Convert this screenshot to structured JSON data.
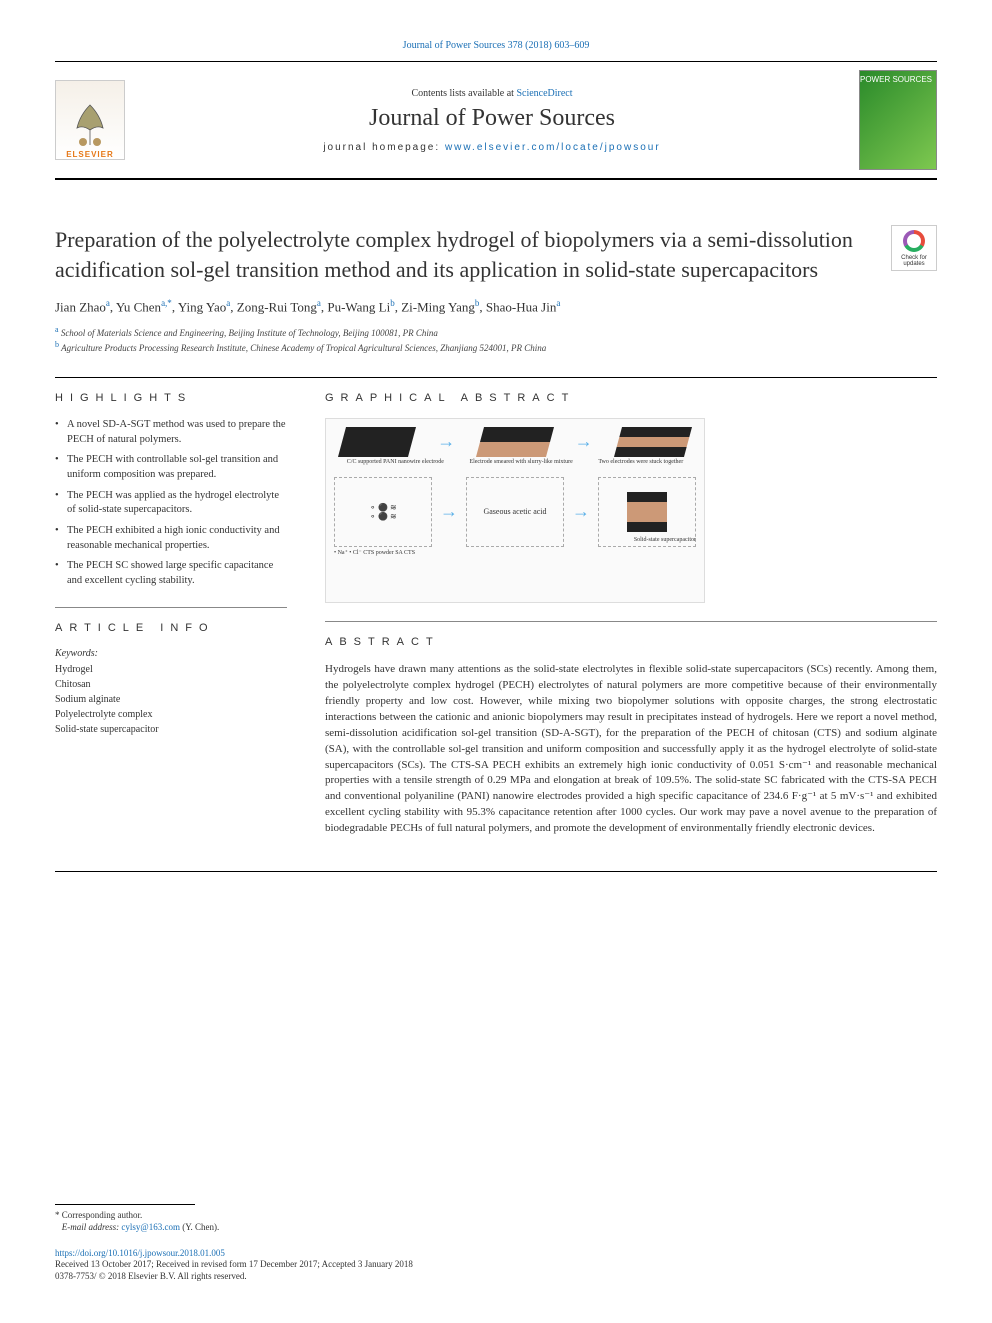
{
  "header": {
    "citation": "Journal of Power Sources 378 (2018) 603–609",
    "contents_prefix": "Contents lists available at ",
    "sciencedirect": "ScienceDirect",
    "journal_name": "Journal of Power Sources",
    "homepage_prefix": "journal homepage: ",
    "homepage_url": "www.elsevier.com/locate/jpowsour",
    "elsevier_label": "ELSEVIER",
    "cover_label": "POWER\nSOURCES"
  },
  "article": {
    "title": "Preparation of the polyelectrolyte complex hydrogel of biopolymers via a semi-dissolution acidification sol-gel transition method and its application in solid-state supercapacitors",
    "check_updates_label": "Check for updates"
  },
  "authors": {
    "list_html": "Jian Zhao<a class='aff'>a</a>, Yu Chen<a class='aff'>a,*</a>, Ying Yao<a class='aff'>a</a>, Zong-Rui Tong<a class='aff'>a</a>, Pu-Wang Li<a class='aff'>b</a>, Zi-Ming Yang<a class='aff'>b</a>, Shao-Hua Jin<a class='aff'>a</a>",
    "affiliations": [
      {
        "label": "a",
        "text": "School of Materials Science and Engineering, Beijing Institute of Technology, Beijing 100081, PR China"
      },
      {
        "label": "b",
        "text": "Agriculture Products Processing Research Institute, Chinese Academy of Tropical Agricultural Sciences, Zhanjiang 524001, PR China"
      }
    ]
  },
  "highlights": {
    "heading": "HIGHLIGHTS",
    "items": [
      "A novel SD-A-SGT method was used to prepare the PECH of natural polymers.",
      "The PECH with controllable sol-gel transition and uniform composition was prepared.",
      "The PECH was applied as the hydrogel electrolyte of solid-state supercapacitors.",
      "The PECH exhibited a high ionic conductivity and reasonable mechanical properties.",
      "The PECH SC showed large specific capacitance and excellent cycling stability."
    ]
  },
  "graphical_abstract": {
    "heading": "GRAPHICAL ABSTRACT",
    "labels": {
      "l1": "C/C supported PANI nanowire electrode",
      "l2": "Electrode smeared with slurry-like mixture",
      "l3": "Two electrodes were stuck together",
      "gas": "Gaseous acetic acid",
      "sc": "Solid-state supercapacitor",
      "legend": "• Na⁺   • Cl⁻   CTS powder   SA   CTS"
    }
  },
  "article_info": {
    "heading": "ARTICLE INFO",
    "kw_label": "Keywords:",
    "keywords": [
      "Hydrogel",
      "Chitosan",
      "Sodium alginate",
      "Polyelectrolyte complex",
      "Solid-state supercapacitor"
    ]
  },
  "abstract": {
    "heading": "ABSTRACT",
    "text": "Hydrogels have drawn many attentions as the solid-state electrolytes in flexible solid-state supercapacitors (SCs) recently. Among them, the polyelectrolyte complex hydrogel (PECH) electrolytes of natural polymers are more competitive because of their environmentally friendly property and low cost. However, while mixing two biopolymer solutions with opposite charges, the strong electrostatic interactions between the cationic and anionic biopolymers may result in precipitates instead of hydrogels. Here we report a novel method, semi-dissolution acidification sol-gel transition (SD-A-SGT), for the preparation of the PECH of chitosan (CTS) and sodium alginate (SA), with the controllable sol-gel transition and uniform composition and successfully apply it as the hydrogel electrolyte of solid-state supercapacitors (SCs). The CTS-SA PECH exhibits an extremely high ionic conductivity of 0.051 S·cm⁻¹ and reasonable mechanical properties with a tensile strength of 0.29 MPa and elongation at break of 109.5%. The solid-state SC fabricated with the CTS-SA PECH and conventional polyaniline (PANI) nanowire electrodes provided a high specific capacitance of 234.6 F·g⁻¹ at 5 mV·s⁻¹ and exhibited excellent cycling stability with 95.3% capacitance retention after 1000 cycles. Our work may pave a novel avenue to the preparation of biodegradable PECHs of full natural polymers, and promote the development of environmentally friendly electronic devices."
  },
  "footer": {
    "corr_label": "* Corresponding author.",
    "email_label": "E-mail address: ",
    "email": "cylsy@163.com",
    "email_suffix": " (Y. Chen).",
    "doi": "https://doi.org/10.1016/j.jpowsour.2018.01.005",
    "history": "Received 13 October 2017; Received in revised form 17 December 2017; Accepted 3 January 2018",
    "copyright": "0378-7753/ © 2018 Elsevier B.V. All rights reserved."
  },
  "colors": {
    "link": "#1a6fb5",
    "elsevier_orange": "#e67817",
    "cover_green_dark": "#2a8a2a",
    "cover_green_light": "#7ec850"
  }
}
